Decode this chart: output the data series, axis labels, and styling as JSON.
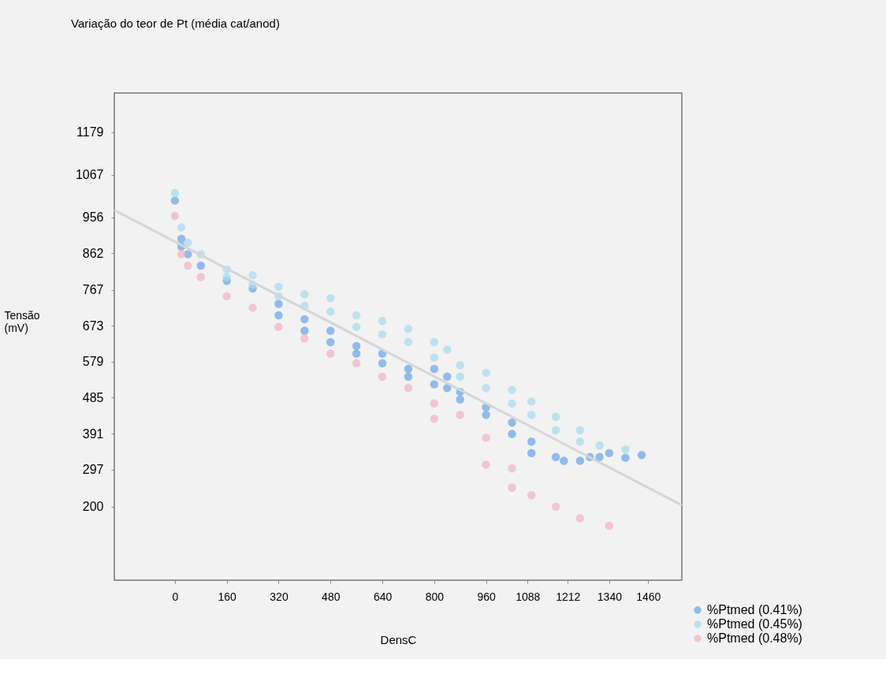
{
  "chart_data": {
    "type": "scatter",
    "title": "Variação do teor de Pt (média cat/anod)",
    "xlabel": "DensC",
    "ylabel": "Tensão (mV)",
    "xlim": [
      -187,
      1564
    ],
    "ylim": [
      8,
      1281
    ],
    "xticks": [
      0,
      160,
      320,
      480,
      640,
      800,
      960,
      1088,
      1212,
      1340,
      1460
    ],
    "yticks": [
      200,
      297,
      391,
      485,
      579,
      673,
      767,
      862,
      956,
      1067,
      1179
    ],
    "grid": false,
    "legend": "bottom right",
    "marker": "circle",
    "series": [
      {
        "name": "%Ptmed (0.41%)",
        "color": "#6fa8e8",
        "x": [
          0,
          20,
          20,
          40,
          80,
          160,
          240,
          320,
          320,
          400,
          400,
          480,
          480,
          560,
          560,
          640,
          640,
          720,
          720,
          800,
          800,
          840,
          840,
          880,
          880,
          960,
          960,
          1040,
          1040,
          1100,
          1100,
          1175,
          1200,
          1250,
          1280,
          1310,
          1340,
          1390,
          1440
        ],
        "values": [
          1000,
          900,
          880,
          860,
          830,
          790,
          770,
          730,
          700,
          690,
          660,
          660,
          630,
          620,
          600,
          600,
          575,
          560,
          540,
          560,
          520,
          540,
          510,
          500,
          480,
          460,
          440,
          420,
          390,
          370,
          340,
          330,
          320,
          320,
          330,
          330,
          340,
          328,
          335
        ]
      },
      {
        "name": "%Ptmed (0.45%)",
        "color": "#a9dcee",
        "x": [
          0,
          20,
          40,
          80,
          160,
          160,
          240,
          240,
          320,
          320,
          400,
          400,
          480,
          480,
          560,
          560,
          640,
          640,
          720,
          720,
          800,
          800,
          840,
          880,
          880,
          960,
          960,
          1040,
          1040,
          1100,
          1100,
          1175,
          1175,
          1250,
          1250,
          1310,
          1390
        ],
        "values": [
          1020,
          930,
          890,
          860,
          820,
          800,
          805,
          780,
          775,
          750,
          755,
          725,
          745,
          710,
          700,
          670,
          685,
          650,
          665,
          630,
          630,
          590,
          610,
          570,
          540,
          550,
          510,
          505,
          470,
          475,
          440,
          435,
          400,
          400,
          370,
          360,
          350
        ]
      },
      {
        "name": "%Ptmed (0.48%)",
        "color": "#f2b6c6",
        "x": [
          0,
          20,
          40,
          80,
          160,
          240,
          320,
          400,
          480,
          560,
          640,
          720,
          800,
          800,
          880,
          960,
          960,
          1040,
          1040,
          1100,
          1175,
          1250,
          1340
        ],
        "values": [
          960,
          860,
          830,
          800,
          750,
          720,
          670,
          640,
          600,
          575,
          540,
          510,
          470,
          430,
          440,
          380,
          310,
          300,
          250,
          230,
          200,
          170,
          150
        ]
      },
      {
        "type": "line",
        "marker": "none",
        "color": "#d6d6d6",
        "x": [
          -187,
          1564
        ],
        "values": [
          975,
          204
        ]
      }
    ]
  }
}
